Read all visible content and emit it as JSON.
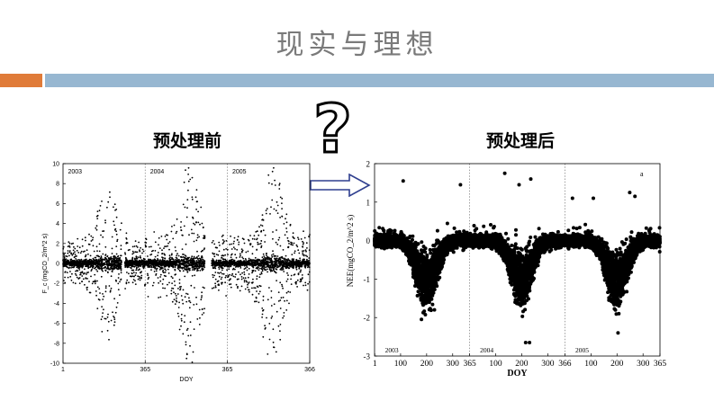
{
  "slide": {
    "title": "现实与理想",
    "accent_colors": {
      "orange": "#e07b39",
      "blue": "#97b7d1"
    }
  },
  "question_icon": "question-mark-icon",
  "arrow_icon": "right-arrow-icon",
  "chart_data": [
    {
      "type": "scatter",
      "title": "预处理前",
      "xlabel": "DOY",
      "ylabel": "F_c (mgCO_2/m^2 s)",
      "xlim": [
        0,
        1096
      ],
      "ylim": [
        -10,
        10
      ],
      "x_ticks": [
        {
          "pos": 0,
          "label": "1"
        },
        {
          "pos": 365,
          "label": "365"
        },
        {
          "pos": 730,
          "label": "365"
        },
        {
          "pos": 1096,
          "label": "366"
        }
      ],
      "y_ticks": [
        -10,
        -8,
        -6,
        -4,
        -2,
        0,
        2,
        4,
        6,
        8,
        10
      ],
      "year_dividers": [
        365,
        730
      ],
      "year_labels": [
        {
          "x": 30,
          "label": "2003"
        },
        {
          "x": 395,
          "label": "2004"
        },
        {
          "x": 760,
          "label": "2005"
        }
      ],
      "grid": false,
      "marker": "dot",
      "series_color": "#000000"
    },
    {
      "type": "scatter",
      "title": "预处理后",
      "xlabel": "DOY",
      "ylabel": "NEE(mgCO_2/m^2 s)",
      "xlim": [
        0,
        1096
      ],
      "ylim": [
        -3,
        2
      ],
      "x_ticks": [
        {
          "pos": 1,
          "label": "1"
        },
        {
          "pos": 100,
          "label": "100"
        },
        {
          "pos": 200,
          "label": "200"
        },
        {
          "pos": 300,
          "label": "300"
        },
        {
          "pos": 365,
          "label": "365"
        },
        {
          "pos": 465,
          "label": "100"
        },
        {
          "pos": 565,
          "label": "200"
        },
        {
          "pos": 665,
          "label": "300"
        },
        {
          "pos": 731,
          "label": "366"
        },
        {
          "pos": 831,
          "label": "100"
        },
        {
          "pos": 931,
          "label": "200"
        },
        {
          "pos": 1031,
          "label": "300"
        },
        {
          "pos": 1096,
          "label": "365"
        }
      ],
      "y_ticks": [
        -3,
        -2,
        -1,
        0,
        1,
        2
      ],
      "year_dividers": [
        365,
        731
      ],
      "year_labels": [
        {
          "x": 40,
          "label": "2003"
        },
        {
          "x": 405,
          "label": "2004"
        },
        {
          "x": 771,
          "label": "2005"
        }
      ],
      "annotation": "a",
      "grid": false,
      "marker": "dot",
      "series_color": "#000000"
    }
  ]
}
